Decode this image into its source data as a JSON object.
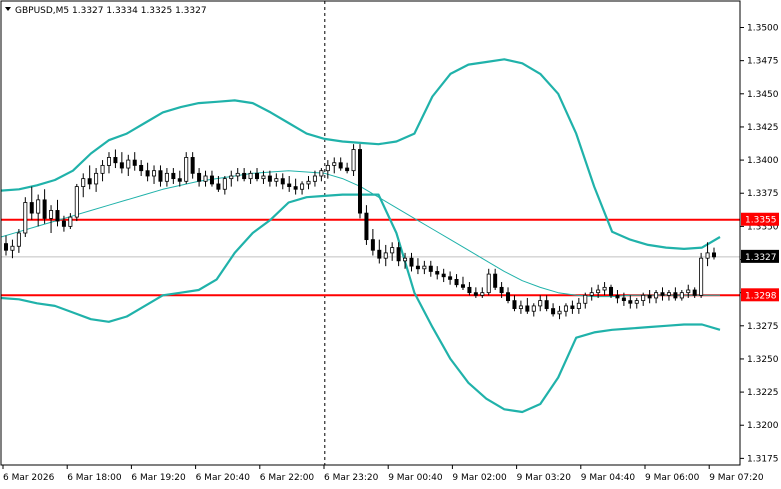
{
  "header": {
    "symbol_line": "GBPUSD,M5  1.3327 1.3334 1.3325 1.3327",
    "dropdown_icon": "triangle-down-icon"
  },
  "colors": {
    "background": "#ffffff",
    "candle": "#000000",
    "bands": "#20b2aa",
    "support_resistance": "#ff0000",
    "bid_line": "#c0c0c0",
    "price_tag_bg": "#000000",
    "price_tag_text": "#ffffff",
    "level_tag_bg": "#ff0000",
    "level_tag_text": "#ffffff"
  },
  "chart_data": {
    "type": "candlestick",
    "symbol": "GBPUSD",
    "timeframe": "M5",
    "ylim": [
      1.317,
      1.352
    ],
    "yticks": [
      "1.3500",
      "1.3475",
      "1.3450",
      "1.3425",
      "1.3400",
      "1.3375",
      "1.3350",
      "1.3325",
      "1.3300",
      "1.3275",
      "1.3250",
      "1.3225",
      "1.3200",
      "1.3175"
    ],
    "xticks": [
      "6 Mar 2026",
      "6 Mar 18:00",
      "6 Mar 19:20",
      "6 Mar 20:40",
      "6 Mar 22:00",
      "6 Mar 23:20",
      "9 Mar 00:40",
      "9 Mar 02:00",
      "9 Mar 03:20",
      "9 Mar 04:40",
      "9 Mar 06:00",
      "9 Mar 07:20"
    ],
    "session_break_label": "6 Mar 23:20",
    "horizontal_levels": [
      {
        "label": "1.3355",
        "value": 1.3355
      },
      {
        "label": "1.3298",
        "value": 1.3298
      }
    ],
    "current_price": {
      "label": "1.3327",
      "value": 1.3327
    },
    "candles": [
      {
        "o": 1.3337,
        "h": 1.3343,
        "l": 1.3328,
        "c": 1.3332
      },
      {
        "o": 1.3332,
        "h": 1.334,
        "l": 1.3326,
        "c": 1.3335
      },
      {
        "o": 1.3335,
        "h": 1.3348,
        "l": 1.333,
        "c": 1.3345
      },
      {
        "o": 1.3345,
        "h": 1.3372,
        "l": 1.3342,
        "c": 1.3368
      },
      {
        "o": 1.3368,
        "h": 1.338,
        "l": 1.3355,
        "c": 1.336
      },
      {
        "o": 1.336,
        "h": 1.3374,
        "l": 1.335,
        "c": 1.337
      },
      {
        "o": 1.337,
        "h": 1.3378,
        "l": 1.3352,
        "c": 1.3356
      },
      {
        "o": 1.3356,
        "h": 1.3366,
        "l": 1.3345,
        "c": 1.3362
      },
      {
        "o": 1.3362,
        "h": 1.337,
        "l": 1.335,
        "c": 1.3354
      },
      {
        "o": 1.3354,
        "h": 1.3358,
        "l": 1.3346,
        "c": 1.335
      },
      {
        "o": 1.335,
        "h": 1.336,
        "l": 1.3348,
        "c": 1.3357
      },
      {
        "o": 1.3357,
        "h": 1.3382,
        "l": 1.3354,
        "c": 1.338
      },
      {
        "o": 1.338,
        "h": 1.339,
        "l": 1.3372,
        "c": 1.3386
      },
      {
        "o": 1.3386,
        "h": 1.3396,
        "l": 1.3378,
        "c": 1.3382
      },
      {
        "o": 1.3382,
        "h": 1.3394,
        "l": 1.3376,
        "c": 1.339
      },
      {
        "o": 1.339,
        "h": 1.34,
        "l": 1.3384,
        "c": 1.3396
      },
      {
        "o": 1.3396,
        "h": 1.3406,
        "l": 1.339,
        "c": 1.3402
      },
      {
        "o": 1.3402,
        "h": 1.3408,
        "l": 1.3394,
        "c": 1.3398
      },
      {
        "o": 1.3398,
        "h": 1.3406,
        "l": 1.339,
        "c": 1.3394
      },
      {
        "o": 1.3394,
        "h": 1.3404,
        "l": 1.3388,
        "c": 1.34
      },
      {
        "o": 1.34,
        "h": 1.3406,
        "l": 1.3392,
        "c": 1.3396
      },
      {
        "o": 1.3396,
        "h": 1.34,
        "l": 1.3388,
        "c": 1.3392
      },
      {
        "o": 1.3392,
        "h": 1.3398,
        "l": 1.3384,
        "c": 1.3388
      },
      {
        "o": 1.3388,
        "h": 1.3396,
        "l": 1.3382,
        "c": 1.3392
      },
      {
        "o": 1.3392,
        "h": 1.3396,
        "l": 1.338,
        "c": 1.3384
      },
      {
        "o": 1.3384,
        "h": 1.3394,
        "l": 1.338,
        "c": 1.339
      },
      {
        "o": 1.339,
        "h": 1.3394,
        "l": 1.3382,
        "c": 1.3386
      },
      {
        "o": 1.3386,
        "h": 1.3392,
        "l": 1.338,
        "c": 1.3384
      },
      {
        "o": 1.3384,
        "h": 1.3406,
        "l": 1.3382,
        "c": 1.3402
      },
      {
        "o": 1.3402,
        "h": 1.3406,
        "l": 1.3386,
        "c": 1.339
      },
      {
        "o": 1.339,
        "h": 1.3394,
        "l": 1.338,
        "c": 1.3384
      },
      {
        "o": 1.3384,
        "h": 1.3392,
        "l": 1.338,
        "c": 1.3388
      },
      {
        "o": 1.3388,
        "h": 1.3392,
        "l": 1.338,
        "c": 1.3382
      },
      {
        "o": 1.3382,
        "h": 1.3388,
        "l": 1.3376,
        "c": 1.3378
      },
      {
        "o": 1.3378,
        "h": 1.3388,
        "l": 1.3374,
        "c": 1.3386
      },
      {
        "o": 1.3386,
        "h": 1.3392,
        "l": 1.338,
        "c": 1.3388
      },
      {
        "o": 1.3388,
        "h": 1.3394,
        "l": 1.3384,
        "c": 1.339
      },
      {
        "o": 1.339,
        "h": 1.3394,
        "l": 1.3384,
        "c": 1.3386
      },
      {
        "o": 1.3386,
        "h": 1.3392,
        "l": 1.3382,
        "c": 1.339
      },
      {
        "o": 1.339,
        "h": 1.3394,
        "l": 1.3384,
        "c": 1.3386
      },
      {
        "o": 1.3386,
        "h": 1.3392,
        "l": 1.3382,
        "c": 1.3388
      },
      {
        "o": 1.3388,
        "h": 1.3392,
        "l": 1.338,
        "c": 1.3384
      },
      {
        "o": 1.3384,
        "h": 1.339,
        "l": 1.338,
        "c": 1.3386
      },
      {
        "o": 1.3386,
        "h": 1.339,
        "l": 1.3378,
        "c": 1.3382
      },
      {
        "o": 1.3382,
        "h": 1.3388,
        "l": 1.3376,
        "c": 1.338
      },
      {
        "o": 1.338,
        "h": 1.3386,
        "l": 1.3374,
        "c": 1.3378
      },
      {
        "o": 1.3378,
        "h": 1.3384,
        "l": 1.3374,
        "c": 1.3382
      },
      {
        "o": 1.3382,
        "h": 1.3388,
        "l": 1.3378,
        "c": 1.3384
      },
      {
        "o": 1.3384,
        "h": 1.3392,
        "l": 1.338,
        "c": 1.3388
      },
      {
        "o": 1.3388,
        "h": 1.3394,
        "l": 1.3384,
        "c": 1.3392
      },
      {
        "o": 1.3392,
        "h": 1.34,
        "l": 1.3386,
        "c": 1.3396
      },
      {
        "o": 1.3396,
        "h": 1.3402,
        "l": 1.339,
        "c": 1.3398
      },
      {
        "o": 1.3398,
        "h": 1.3402,
        "l": 1.3392,
        "c": 1.3394
      },
      {
        "o": 1.3394,
        "h": 1.3398,
        "l": 1.339,
        "c": 1.3392
      },
      {
        "o": 1.3392,
        "h": 1.3412,
        "l": 1.3388,
        "c": 1.3408
      },
      {
        "o": 1.3408,
        "h": 1.3412,
        "l": 1.3356,
        "c": 1.336
      },
      {
        "o": 1.336,
        "h": 1.3366,
        "l": 1.3336,
        "c": 1.334
      },
      {
        "o": 1.334,
        "h": 1.3348,
        "l": 1.3328,
        "c": 1.3332
      },
      {
        "o": 1.3332,
        "h": 1.334,
        "l": 1.3322,
        "c": 1.3326
      },
      {
        "o": 1.3326,
        "h": 1.3336,
        "l": 1.332,
        "c": 1.333
      },
      {
        "o": 1.333,
        "h": 1.3338,
        "l": 1.3324,
        "c": 1.3334
      },
      {
        "o": 1.3334,
        "h": 1.3338,
        "l": 1.332,
        "c": 1.3324
      },
      {
        "o": 1.3324,
        "h": 1.333,
        "l": 1.3318,
        "c": 1.3326
      },
      {
        "o": 1.3326,
        "h": 1.333,
        "l": 1.3316,
        "c": 1.332
      },
      {
        "o": 1.332,
        "h": 1.3326,
        "l": 1.3314,
        "c": 1.3318
      },
      {
        "o": 1.3318,
        "h": 1.3324,
        "l": 1.3314,
        "c": 1.332
      },
      {
        "o": 1.332,
        "h": 1.3324,
        "l": 1.3312,
        "c": 1.3316
      },
      {
        "o": 1.3316,
        "h": 1.332,
        "l": 1.331,
        "c": 1.3314
      },
      {
        "o": 1.3314,
        "h": 1.3318,
        "l": 1.3308,
        "c": 1.3312
      },
      {
        "o": 1.3312,
        "h": 1.3316,
        "l": 1.3306,
        "c": 1.331
      },
      {
        "o": 1.331,
        "h": 1.3314,
        "l": 1.3304,
        "c": 1.3306
      },
      {
        "o": 1.3306,
        "h": 1.3312,
        "l": 1.3302,
        "c": 1.3304
      },
      {
        "o": 1.3304,
        "h": 1.3308,
        "l": 1.3298,
        "c": 1.33
      },
      {
        "o": 1.33,
        "h": 1.3304,
        "l": 1.3296,
        "c": 1.3298
      },
      {
        "o": 1.3298,
        "h": 1.3304,
        "l": 1.3296,
        "c": 1.33
      },
      {
        "o": 1.33,
        "h": 1.3318,
        "l": 1.3298,
        "c": 1.3314
      },
      {
        "o": 1.3314,
        "h": 1.3318,
        "l": 1.3302,
        "c": 1.3304
      },
      {
        "o": 1.3304,
        "h": 1.3308,
        "l": 1.3296,
        "c": 1.33
      },
      {
        "o": 1.33,
        "h": 1.3304,
        "l": 1.3292,
        "c": 1.3294
      },
      {
        "o": 1.3294,
        "h": 1.3298,
        "l": 1.3286,
        "c": 1.3288
      },
      {
        "o": 1.3288,
        "h": 1.3294,
        "l": 1.3284,
        "c": 1.329
      },
      {
        "o": 1.329,
        "h": 1.3296,
        "l": 1.3284,
        "c": 1.3286
      },
      {
        "o": 1.3286,
        "h": 1.3292,
        "l": 1.3282,
        "c": 1.329
      },
      {
        "o": 1.329,
        "h": 1.3298,
        "l": 1.3286,
        "c": 1.3294
      },
      {
        "o": 1.3294,
        "h": 1.3298,
        "l": 1.3286,
        "c": 1.3288
      },
      {
        "o": 1.3288,
        "h": 1.3292,
        "l": 1.3282,
        "c": 1.3284
      },
      {
        "o": 1.3284,
        "h": 1.329,
        "l": 1.328,
        "c": 1.3286
      },
      {
        "o": 1.3286,
        "h": 1.3292,
        "l": 1.3282,
        "c": 1.329
      },
      {
        "o": 1.329,
        "h": 1.3294,
        "l": 1.3284,
        "c": 1.3288
      },
      {
        "o": 1.3288,
        "h": 1.3296,
        "l": 1.3284,
        "c": 1.3292
      },
      {
        "o": 1.3292,
        "h": 1.33,
        "l": 1.3288,
        "c": 1.3298
      },
      {
        "o": 1.3298,
        "h": 1.3304,
        "l": 1.3294,
        "c": 1.33
      },
      {
        "o": 1.33,
        "h": 1.3306,
        "l": 1.3296,
        "c": 1.3302
      },
      {
        "o": 1.3302,
        "h": 1.3308,
        "l": 1.3298,
        "c": 1.3304
      },
      {
        "o": 1.3304,
        "h": 1.3306,
        "l": 1.3296,
        "c": 1.3298
      },
      {
        "o": 1.3298,
        "h": 1.3302,
        "l": 1.3292,
        "c": 1.3296
      },
      {
        "o": 1.3296,
        "h": 1.33,
        "l": 1.329,
        "c": 1.3294
      },
      {
        "o": 1.3294,
        "h": 1.3298,
        "l": 1.3288,
        "c": 1.3292
      },
      {
        "o": 1.3292,
        "h": 1.3296,
        "l": 1.3288,
        "c": 1.3294
      },
      {
        "o": 1.3294,
        "h": 1.33,
        "l": 1.329,
        "c": 1.3298
      },
      {
        "o": 1.3298,
        "h": 1.3302,
        "l": 1.3292,
        "c": 1.3296
      },
      {
        "o": 1.3296,
        "h": 1.3302,
        "l": 1.3292,
        "c": 1.33
      },
      {
        "o": 1.33,
        "h": 1.3304,
        "l": 1.3294,
        "c": 1.3298
      },
      {
        "o": 1.3298,
        "h": 1.3302,
        "l": 1.3294,
        "c": 1.33
      },
      {
        "o": 1.33,
        "h": 1.3304,
        "l": 1.3294,
        "c": 1.3296
      },
      {
        "o": 1.3296,
        "h": 1.3302,
        "l": 1.3294,
        "c": 1.33
      },
      {
        "o": 1.33,
        "h": 1.3306,
        "l": 1.3296,
        "c": 1.3302
      },
      {
        "o": 1.3302,
        "h": 1.3304,
        "l": 1.3296,
        "c": 1.3298
      },
      {
        "o": 1.3298,
        "h": 1.333,
        "l": 1.3296,
        "c": 1.3326
      },
      {
        "o": 1.3326,
        "h": 1.3338,
        "l": 1.332,
        "c": 1.333
      },
      {
        "o": 1.333,
        "h": 1.3334,
        "l": 1.3325,
        "c": 1.3327
      }
    ],
    "bands": {
      "upper": [
        1.3377,
        1.3378,
        1.3381,
        1.3385,
        1.3392,
        1.3405,
        1.3415,
        1.342,
        1.3428,
        1.3436,
        1.344,
        1.3443,
        1.3444,
        1.3445,
        1.3443,
        1.3436,
        1.3428,
        1.342,
        1.3416,
        1.3414,
        1.3413,
        1.3412,
        1.3414,
        1.342,
        1.3448,
        1.3465,
        1.3472,
        1.3474,
        1.3476,
        1.3473,
        1.3465,
        1.345,
        1.342,
        1.338,
        1.3346,
        1.334,
        1.3336,
        1.3334,
        1.3333,
        1.3334,
        1.3342
      ],
      "middle": [
        1.3342,
        1.3346,
        1.335,
        1.3354,
        1.3358,
        1.3362,
        1.3366,
        1.337,
        1.3374,
        1.3378,
        1.3381,
        1.3384,
        1.3386,
        1.3388,
        1.339,
        1.3391,
        1.3392,
        1.3391,
        1.339,
        1.3386,
        1.338,
        1.3372,
        1.3364,
        1.3356,
        1.3348,
        1.334,
        1.3332,
        1.3324,
        1.3316,
        1.3309,
        1.3304,
        1.33,
        1.3298,
        1.3297,
        1.3297,
        1.3298,
        1.3298,
        1.3298,
        1.3298,
        1.3298,
        1.3298
      ],
      "lower": [
        1.3296,
        1.3295,
        1.3292,
        1.329,
        1.3285,
        1.328,
        1.3278,
        1.3282,
        1.329,
        1.3298,
        1.33,
        1.3302,
        1.331,
        1.333,
        1.3345,
        1.3355,
        1.3368,
        1.3372,
        1.3373,
        1.3374,
        1.3374,
        1.3374,
        1.3345,
        1.33,
        1.3274,
        1.325,
        1.3232,
        1.322,
        1.3212,
        1.321,
        1.3216,
        1.3236,
        1.3266,
        1.327,
        1.3272,
        1.3273,
        1.3274,
        1.3275,
        1.3276,
        1.3276,
        1.3272
      ]
    }
  }
}
